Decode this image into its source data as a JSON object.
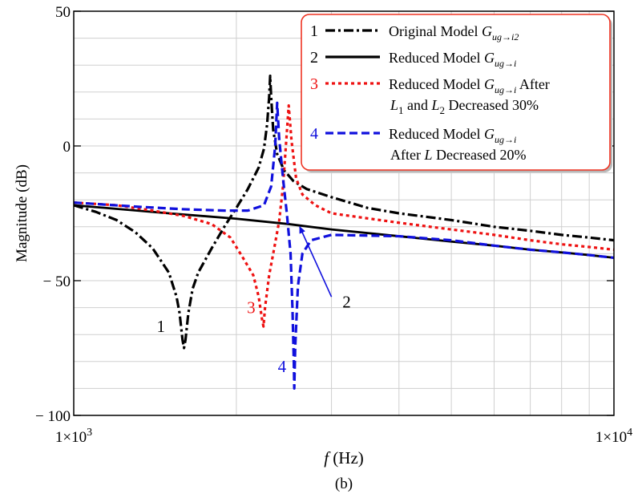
{
  "chart_data": {
    "type": "line",
    "xscale": "log",
    "xlim": [
      1000,
      10000
    ],
    "ylim": [
      -100,
      50
    ],
    "xlabel": {
      "italic": "f",
      "rest": " (Hz)"
    },
    "ylabel": "Magnitude (dB)",
    "caption": "(b)",
    "grid": true,
    "legend_position": "top-right",
    "yticks": [
      {
        "value": 50,
        "label": "50"
      },
      {
        "value": 0,
        "label": "0"
      },
      {
        "value": -50,
        "label": "− 50"
      },
      {
        "value": -100,
        "label": "− 100"
      }
    ],
    "xticks": [
      {
        "value": 1000,
        "mant": "1×10",
        "exp": "3"
      },
      {
        "value": 10000,
        "mant": "1×10",
        "exp": "4"
      }
    ],
    "series": [
      {
        "id": "1",
        "name": "Original Model G_ug→i2",
        "color": "#000000",
        "style": "dashdot",
        "points": [
          [
            1000,
            -22
          ],
          [
            1100,
            -24.5
          ],
          [
            1200,
            -27.5
          ],
          [
            1300,
            -32
          ],
          [
            1400,
            -38
          ],
          [
            1500,
            -47
          ],
          [
            1550,
            -56
          ],
          [
            1570,
            -62
          ],
          [
            1590,
            -72
          ],
          [
            1600,
            -75
          ],
          [
            1610,
            -72
          ],
          [
            1630,
            -62
          ],
          [
            1660,
            -53
          ],
          [
            1700,
            -47
          ],
          [
            1800,
            -38
          ],
          [
            1900,
            -30
          ],
          [
            2000,
            -23
          ],
          [
            2100,
            -16
          ],
          [
            2200,
            -8
          ],
          [
            2250,
            -1
          ],
          [
            2280,
            8
          ],
          [
            2300,
            18
          ],
          [
            2310,
            26
          ],
          [
            2320,
            18
          ],
          [
            2340,
            6
          ],
          [
            2380,
            -3
          ],
          [
            2450,
            -9
          ],
          [
            2550,
            -13
          ],
          [
            2700,
            -16
          ],
          [
            3000,
            -19
          ],
          [
            3500,
            -23
          ],
          [
            4000,
            -25
          ],
          [
            5000,
            -27.5
          ],
          [
            6000,
            -30
          ],
          [
            7000,
            -31.5
          ],
          [
            8000,
            -33
          ],
          [
            9000,
            -34
          ],
          [
            10000,
            -35
          ]
        ]
      },
      {
        "id": "2",
        "name": "Reduced Model G_ug→i",
        "color": "#000000",
        "style": "solid",
        "points": [
          [
            1000,
            -22
          ],
          [
            1500,
            -25
          ],
          [
            2000,
            -27
          ],
          [
            2500,
            -29
          ],
          [
            3000,
            -31
          ],
          [
            4000,
            -33.5
          ],
          [
            5000,
            -35.5
          ],
          [
            6000,
            -37
          ],
          [
            7000,
            -38.5
          ],
          [
            8000,
            -39.5
          ],
          [
            9000,
            -40.5
          ],
          [
            10000,
            -41.5
          ]
        ]
      },
      {
        "id": "3",
        "name": "Reduced Model G_ug→i After L1 and L2 Decreased 30%",
        "color": "#ee1111",
        "style": "dot",
        "points": [
          [
            1000,
            -21
          ],
          [
            1200,
            -22
          ],
          [
            1400,
            -24
          ],
          [
            1600,
            -26
          ],
          [
            1800,
            -29
          ],
          [
            1950,
            -34
          ],
          [
            2050,
            -41
          ],
          [
            2150,
            -48
          ],
          [
            2200,
            -56
          ],
          [
            2230,
            -64
          ],
          [
            2245,
            -67
          ],
          [
            2260,
            -60
          ],
          [
            2300,
            -48
          ],
          [
            2350,
            -38
          ],
          [
            2400,
            -28
          ],
          [
            2440,
            -15
          ],
          [
            2470,
            0
          ],
          [
            2500,
            15
          ],
          [
            2530,
            2
          ],
          [
            2580,
            -12
          ],
          [
            2650,
            -18
          ],
          [
            2800,
            -22
          ],
          [
            3000,
            -25
          ],
          [
            4000,
            -28.5
          ],
          [
            5000,
            -31
          ],
          [
            6000,
            -33
          ],
          [
            7000,
            -35
          ],
          [
            8000,
            -36.5
          ],
          [
            9000,
            -37.5
          ],
          [
            10000,
            -38.5
          ]
        ]
      },
      {
        "id": "4",
        "name": "Reduced Model G_ug→i After L Decreased 20%",
        "color": "#1010dd",
        "style": "dash",
        "points": [
          [
            1000,
            -21
          ],
          [
            1300,
            -22.5
          ],
          [
            1600,
            -23.5
          ],
          [
            1900,
            -24
          ],
          [
            2100,
            -24
          ],
          [
            2250,
            -22
          ],
          [
            2320,
            -15
          ],
          [
            2360,
            0
          ],
          [
            2380,
            16
          ],
          [
            2400,
            3
          ],
          [
            2440,
            -12
          ],
          [
            2480,
            -25
          ],
          [
            2520,
            -40
          ],
          [
            2540,
            -60
          ],
          [
            2555,
            -80
          ],
          [
            2560,
            -90
          ],
          [
            2570,
            -75
          ],
          [
            2600,
            -52
          ],
          [
            2650,
            -40
          ],
          [
            2750,
            -35
          ],
          [
            3000,
            -33
          ],
          [
            4000,
            -33.5
          ],
          [
            5000,
            -35
          ],
          [
            6000,
            -37
          ],
          [
            7000,
            -38.5
          ],
          [
            8000,
            -39.5
          ],
          [
            9000,
            -40.5
          ],
          [
            10000,
            -41.5
          ]
        ]
      }
    ],
    "annotations": [
      {
        "id": "ann-1",
        "text": "1",
        "color": "#000000",
        "x": 1450,
        "y": -69
      },
      {
        "id": "ann-3",
        "text": "3",
        "color": "#ee1111",
        "x": 2130,
        "y": -62
      },
      {
        "id": "ann-4",
        "text": "4",
        "color": "#1010dd",
        "x": 2430,
        "y": -84
      },
      {
        "id": "ann-2",
        "text": "2",
        "color": "#000000",
        "x": 3200,
        "y": -60
      }
    ],
    "arrow": {
      "color": "#1010dd",
      "from": [
        3000,
        -56
      ],
      "to": [
        2620,
        -30
      ]
    },
    "legend": [
      {
        "num": "1",
        "color": "#000000",
        "style": "dashdot",
        "pre": "Original Model ",
        "sym": "G",
        "sub": "ug→i2",
        "lines": []
      },
      {
        "num": "2",
        "color": "#000000",
        "style": "solid",
        "pre": "Reduced Model ",
        "sym": "G",
        "sub": "ug→i",
        "lines": []
      },
      {
        "num": "3",
        "color": "#ee1111",
        "style": "dot",
        "pre": "Reduced Model ",
        "sym": "G",
        "sub": "ug→i",
        "post": " After",
        "lines": [
          [
            {
              "t": "L",
              "i": true
            },
            {
              "t": "1",
              "sub": true
            },
            {
              "t": " and "
            },
            {
              "t": "L",
              "i": true
            },
            {
              "t": "2",
              "sub": true
            },
            {
              "t": " Decreased 30%"
            }
          ]
        ]
      },
      {
        "num": "4",
        "color": "#1010dd",
        "style": "dash",
        "pre": "Reduced Model ",
        "sym": "G",
        "sub": "ug→i",
        "lines": [
          [
            {
              "t": "After "
            },
            {
              "t": "L",
              "i": true
            },
            {
              "t": " Decreased 20%"
            }
          ]
        ]
      }
    ]
  }
}
